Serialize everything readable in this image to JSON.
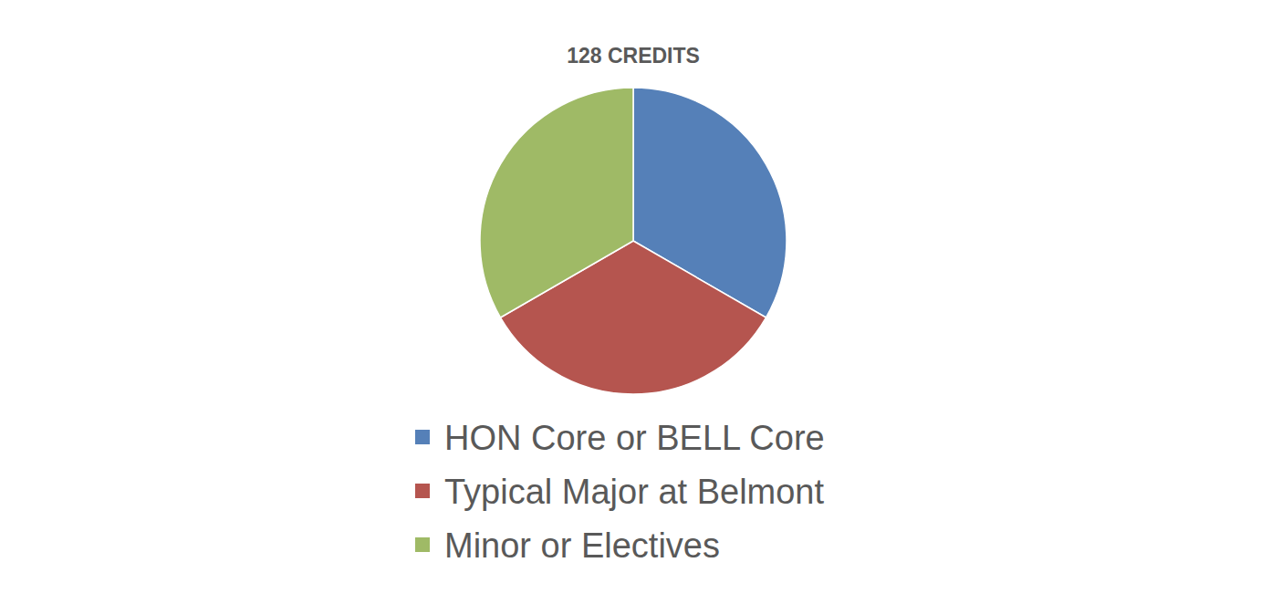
{
  "chart_data": {
    "type": "pie",
    "title": "128 CREDITS",
    "categories": [
      "HON Core or BELL Core",
      "Typical Major at Belmont",
      "Minor or Electives"
    ],
    "values": [
      33.3,
      33.3,
      33.3
    ],
    "colors": [
      "#5580b8",
      "#b5554f",
      "#9fba66"
    ],
    "legend": "bottom"
  }
}
